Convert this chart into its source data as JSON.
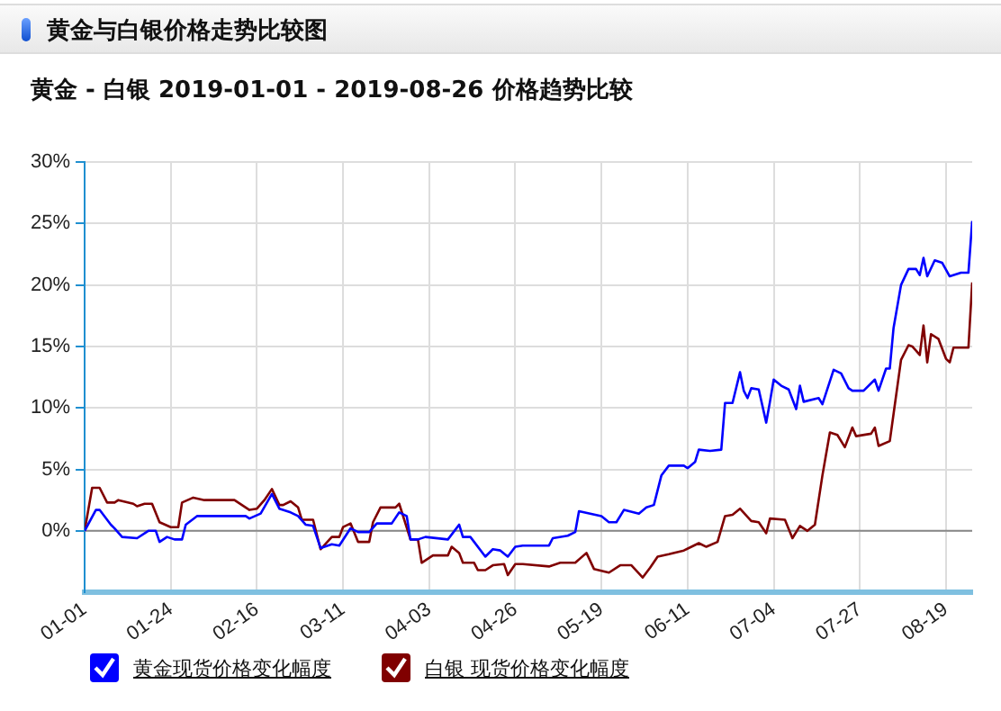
{
  "chart_data": {
    "type": "line",
    "title": "黄金与白银价格走势比较图",
    "subtitle": "黄金 - 白银 2019-01-01 - 2019-08-26 价格趋势比较",
    "xlim": [
      "2019-01-01",
      "2019-08-26"
    ],
    "xticks": [
      {
        "value": "2019-01-01",
        "label": "01-01"
      },
      {
        "value": "2019-01-24",
        "label": "01-24"
      },
      {
        "value": "2019-02-16",
        "label": "02-16"
      },
      {
        "value": "2019-03-11",
        "label": "03-11"
      },
      {
        "value": "2019-04-03",
        "label": "04-03"
      },
      {
        "value": "2019-04-26",
        "label": "04-26"
      },
      {
        "value": "2019-05-19",
        "label": "05-19"
      },
      {
        "value": "2019-06-11",
        "label": "06-11"
      },
      {
        "value": "2019-07-04",
        "label": "07-04"
      },
      {
        "value": "2019-07-27",
        "label": "07-27"
      },
      {
        "value": "2019-08-19",
        "label": "08-19"
      }
    ],
    "ylim": [
      -5,
      30
    ],
    "yticks": [
      {
        "value": 0,
        "label": "0%"
      },
      {
        "value": 5,
        "label": "5%"
      },
      {
        "value": 10,
        "label": "10%"
      },
      {
        "value": 15,
        "label": "15%"
      },
      {
        "value": 20,
        "label": "20%"
      },
      {
        "value": 25,
        "label": "25%"
      },
      {
        "value": 30,
        "label": "30%"
      }
    ],
    "grid": true,
    "legend": "bottom",
    "marker": "none",
    "ref_lines": [
      {
        "axis": "y",
        "value": 0,
        "color": "#888888"
      }
    ],
    "series": [
      {
        "name": "黄金现货价格变化幅度",
        "color": "#0000ff",
        "x": [
          "2019-01-01",
          "2019-01-04",
          "2019-01-05",
          "2019-01-08",
          "2019-01-09",
          "2019-01-11",
          "2019-01-15",
          "2019-01-18",
          "2019-01-20",
          "2019-01-21",
          "2019-01-23",
          "2019-01-25",
          "2019-01-27",
          "2019-01-28",
          "2019-01-31",
          "2019-02-07",
          "2019-02-13",
          "2019-02-14",
          "2019-02-17",
          "2019-02-20",
          "2019-02-22",
          "2019-02-25",
          "2019-02-27",
          "2019-03-01",
          "2019-03-03",
          "2019-03-05",
          "2019-03-08",
          "2019-03-10",
          "2019-03-13",
          "2019-03-15",
          "2019-03-18",
          "2019-03-20",
          "2019-03-24",
          "2019-03-26",
          "2019-03-28",
          "2019-03-29",
          "2019-03-31",
          "2019-04-02",
          "2019-04-08",
          "2019-04-11",
          "2019-04-12",
          "2019-04-14",
          "2019-04-18",
          "2019-04-20",
          "2019-04-22",
          "2019-04-24",
          "2019-04-26",
          "2019-04-28",
          "2019-05-05",
          "2019-05-06",
          "2019-05-10",
          "2019-05-12",
          "2019-05-13",
          "2019-05-16",
          "2019-05-19",
          "2019-05-21",
          "2019-05-23",
          "2019-05-25",
          "2019-05-29",
          "2019-05-31",
          "2019-06-02",
          "2019-06-04",
          "2019-06-06",
          "2019-06-10",
          "2019-06-11",
          "2019-06-13",
          "2019-06-14",
          "2019-06-17",
          "2019-06-20",
          "2019-06-21",
          "2019-06-23",
          "2019-06-25",
          "2019-06-26",
          "2019-06-27",
          "2019-06-28",
          "2019-06-30",
          "2019-07-02",
          "2019-07-03",
          "2019-07-04",
          "2019-07-06",
          "2019-07-08",
          "2019-07-10",
          "2019-07-11",
          "2019-07-12",
          "2019-07-16",
          "2019-07-17",
          "2019-07-20",
          "2019-07-22",
          "2019-07-24",
          "2019-07-25",
          "2019-07-28",
          "2019-07-31",
          "2019-08-01",
          "2019-08-03",
          "2019-08-04",
          "2019-08-05",
          "2019-08-07",
          "2019-08-09",
          "2019-08-11",
          "2019-08-12",
          "2019-08-13",
          "2019-08-14",
          "2019-08-16",
          "2019-08-18",
          "2019-08-20",
          "2019-08-23",
          "2019-08-25",
          "2019-08-26"
        ],
        "values": [
          0,
          1.7,
          1.7,
          0.5,
          0.2,
          -0.5,
          -0.6,
          0,
          0,
          -0.9,
          -0.5,
          -0.7,
          -0.7,
          0.5,
          1.2,
          1.2,
          1.2,
          1.0,
          1.4,
          3.0,
          1.8,
          1.5,
          1.2,
          0.5,
          0.4,
          -1.4,
          -1.1,
          -1.2,
          0.2,
          -0.1,
          -0.1,
          0.6,
          0.6,
          1.5,
          1.2,
          -0.7,
          -0.7,
          -0.5,
          -0.7,
          0.5,
          -0.5,
          -0.5,
          -2.1,
          -1.5,
          -1.6,
          -2.1,
          -1.3,
          -1.2,
          -1.2,
          -0.6,
          -0.4,
          -0.1,
          1.6,
          1.4,
          1.2,
          0.7,
          0.7,
          1.7,
          1.4,
          1.9,
          2.1,
          4.5,
          5.3,
          5.3,
          5.1,
          5.6,
          6.6,
          6.5,
          6.6,
          10.4,
          10.4,
          12.9,
          11.4,
          10.8,
          11.6,
          11.5,
          8.8,
          10.5,
          12.3,
          11.8,
          11.5,
          9.9,
          11.8,
          10.5,
          10.8,
          10.3,
          13.1,
          12.8,
          11.6,
          11.4,
          11.4,
          12.3,
          11.4,
          13.2,
          13.2,
          16.5,
          20,
          21.3,
          21.3,
          20.8,
          22.2,
          20.7,
          22,
          21.8,
          20.7,
          21,
          21,
          25.2
        ]
      },
      {
        "name": "白银 现货价格变化幅度",
        "color": "#800000",
        "x": [
          "2019-01-01",
          "2019-01-03",
          "2019-01-05",
          "2019-01-07",
          "2019-01-09",
          "2019-01-10",
          "2019-01-14",
          "2019-01-15",
          "2019-01-17",
          "2019-01-19",
          "2019-01-21",
          "2019-01-24",
          "2019-01-26",
          "2019-01-27",
          "2019-01-30",
          "2019-02-02",
          "2019-02-10",
          "2019-02-14",
          "2019-02-16",
          "2019-02-18",
          "2019-02-20",
          "2019-02-22",
          "2019-02-23",
          "2019-02-25",
          "2019-02-27",
          "2019-02-28",
          "2019-03-03",
          "2019-03-05",
          "2019-03-08",
          "2019-03-10",
          "2019-03-11",
          "2019-03-13",
          "2019-03-15",
          "2019-03-18",
          "2019-03-19",
          "2019-03-21",
          "2019-03-25",
          "2019-03-26",
          "2019-03-29",
          "2019-03-31",
          "2019-04-01",
          "2019-04-04",
          "2019-04-08",
          "2019-04-09",
          "2019-04-11",
          "2019-04-12",
          "2019-04-15",
          "2019-04-16",
          "2019-04-18",
          "2019-04-20",
          "2019-04-23",
          "2019-04-24",
          "2019-04-26",
          "2019-04-28",
          "2019-05-05",
          "2019-05-08",
          "2019-05-12",
          "2019-05-15",
          "2019-05-17",
          "2019-05-21",
          "2019-05-24",
          "2019-05-27",
          "2019-05-30",
          "2019-06-01",
          "2019-06-03",
          "2019-06-06",
          "2019-06-10",
          "2019-06-14",
          "2019-06-16",
          "2019-06-19",
          "2019-06-21",
          "2019-06-23",
          "2019-06-25",
          "2019-06-28",
          "2019-06-30",
          "2019-07-02",
          "2019-07-03",
          "2019-07-07",
          "2019-07-09",
          "2019-07-11",
          "2019-07-13",
          "2019-07-15",
          "2019-07-17",
          "2019-07-19",
          "2019-07-21",
          "2019-07-23",
          "2019-07-25",
          "2019-07-26",
          "2019-07-30",
          "2019-07-31",
          "2019-08-01",
          "2019-08-04",
          "2019-08-05",
          "2019-08-07",
          "2019-08-09",
          "2019-08-10",
          "2019-08-12",
          "2019-08-13",
          "2019-08-14",
          "2019-08-15",
          "2019-08-17",
          "2019-08-19",
          "2019-08-20",
          "2019-08-21",
          "2019-08-25",
          "2019-08-26"
        ],
        "values": [
          0,
          3.5,
          3.5,
          2.3,
          2.3,
          2.5,
          2.2,
          2.0,
          2.2,
          2.2,
          0.7,
          0.3,
          0.3,
          2.3,
          2.7,
          2.5,
          2.5,
          1.7,
          1.8,
          2.5,
          3.4,
          2.1,
          2.1,
          2.4,
          1.9,
          0.9,
          0.9,
          -1.5,
          -0.5,
          -0.5,
          0.3,
          0.6,
          -0.9,
          -0.9,
          0.7,
          1.9,
          1.9,
          2.2,
          -0.7,
          -0.7,
          -2.6,
          -2,
          -2,
          -1.3,
          -1.8,
          -2.6,
          -2.6,
          -3.2,
          -3.2,
          -2.8,
          -2.7,
          -3.6,
          -2.7,
          -2.7,
          -2.9,
          -2.6,
          -2.6,
          -1.8,
          -3.1,
          -3.4,
          -2.8,
          -2.8,
          -3.8,
          -3.0,
          -2.1,
          -1.9,
          -1.6,
          -1.0,
          -1.3,
          -0.9,
          1.2,
          1.3,
          1.8,
          0.8,
          0.7,
          -0.2,
          1.0,
          0.9,
          -0.6,
          0.4,
          0,
          0.5,
          4.5,
          8.0,
          7.8,
          6.8,
          8.4,
          7.7,
          7.9,
          8.4,
          6.9,
          7.3,
          9.5,
          13.9,
          15.1,
          15.0,
          14.3,
          16.7,
          13.7,
          16.0,
          15.6,
          14.0,
          13.7,
          14.9,
          14.9,
          20.2
        ]
      }
    ]
  }
}
